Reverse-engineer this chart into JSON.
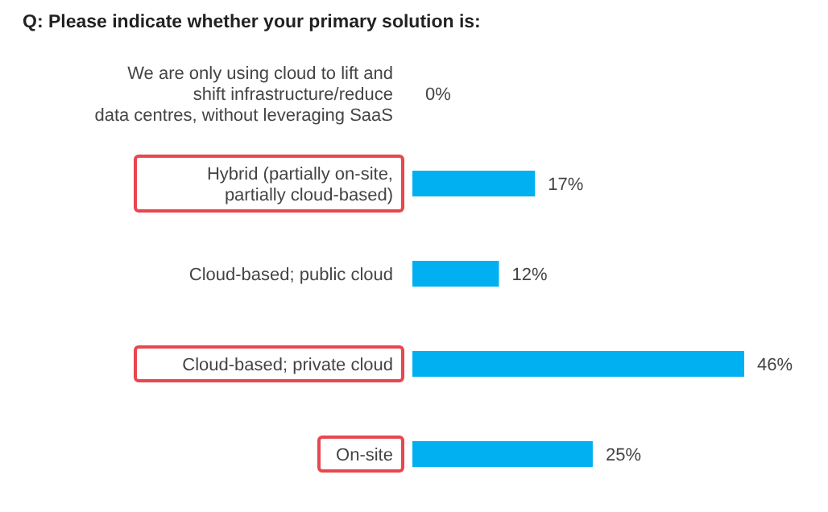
{
  "chart_data": {
    "type": "bar",
    "orientation": "horizontal",
    "title": "Q: Please indicate whether your primary solution is:",
    "categories": [
      "We are only using cloud to lift and\nshift infrastructure/reduce\ndata centres, without leveraging SaaS",
      "Hybrid (partially on-site,\npartially cloud-based)",
      "Cloud-based; public cloud",
      "Cloud-based; private cloud",
      "On-site"
    ],
    "values": [
      0,
      17,
      12,
      46,
      25
    ],
    "value_labels": [
      "0%",
      "17%",
      "12%",
      "46%",
      "25%"
    ],
    "color": "#00b0f0",
    "grid": false,
    "legend": false
  }
}
